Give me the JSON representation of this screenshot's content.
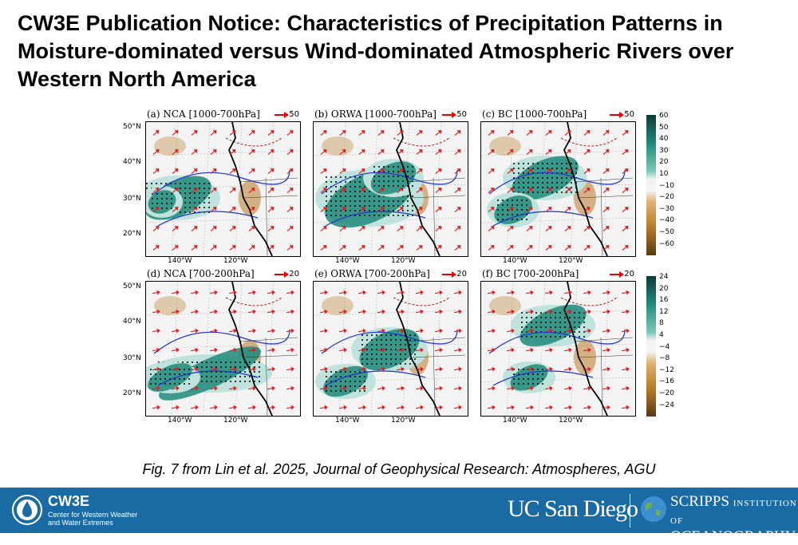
{
  "title": "CW3E Publication Notice: Characteristics of Precipitation Patterns in Moisture-dominated versus Wind-dominated Atmospheric Rivers over Western North America",
  "figure": {
    "panels": [
      {
        "title": "(a) NCA [1000-700hPa]",
        "scale": "50"
      },
      {
        "title": "(b) ORWA [1000-700hPa]",
        "scale": "50"
      },
      {
        "title": "(c) BC [1000-700hPa]",
        "scale": "50"
      },
      {
        "title": "(d) NCA [700-200hPa]",
        "scale": "20"
      },
      {
        "title": "(e) ORWA [700-200hPa]",
        "scale": "20"
      },
      {
        "title": "(f) BC [700-200hPa]",
        "scale": "20"
      }
    ],
    "lat_labels": [
      "50°N",
      "40°N",
      "30°N",
      "20°N"
    ],
    "lon_labels": [
      "140°W",
      "120°W"
    ],
    "colorbar_top": [
      "60",
      "50",
      "40",
      "30",
      "20",
      "10",
      "−10",
      "−20",
      "−30",
      "−40",
      "−50",
      "−60"
    ],
    "colorbar_bottom": [
      "24",
      "20",
      "16",
      "12",
      "8",
      "4",
      "−4",
      "−8",
      "−12",
      "−16",
      "−20",
      "−24"
    ],
    "colors": {
      "positive": "#1f8a7a",
      "negative": "#b97a2a",
      "contour_pos": "#2233cc",
      "contour_neg": "#aa2222",
      "wind": "#e41a1c"
    }
  },
  "caption": "Fig. 7 from Lin et al. 2025, Journal of Geophysical Research: Atmospheres, AGU",
  "footer": {
    "cw3e_name": "CW3E",
    "cw3e_sub": "Center for Western Weather and Water Extremes",
    "ucsd": "UC San Diego",
    "scripps_line1": "SCRIPPS",
    "scripps_inst": "INSTITUTION OF",
    "scripps_line2": "OCEANOGRAPHY"
  }
}
